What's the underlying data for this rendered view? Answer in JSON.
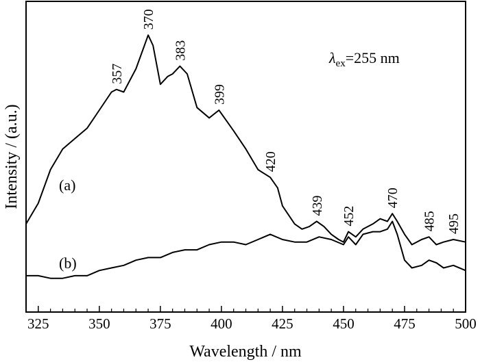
{
  "chart_data": {
    "type": "line",
    "title": "",
    "xlabel": "Wavelength / nm",
    "ylabel": "Intensity / (a.u.)",
    "xlim": [
      320,
      500
    ],
    "ylim": [
      0,
      1
    ],
    "x_ticks": [
      325,
      350,
      375,
      400,
      425,
      450,
      475,
      500
    ],
    "x_tick_labels": [
      "325",
      "350",
      "375",
      "400",
      "425",
      "450",
      "475",
      "500"
    ],
    "grid": false,
    "legend": "none",
    "annotation": {
      "symbol": "λ",
      "subscript": "ex",
      "text": "=255 nm"
    },
    "series": [
      {
        "id": "a",
        "label": "(a)",
        "x": [
          320,
          325,
          330,
          335,
          340,
          345,
          350,
          355,
          357,
          360,
          365,
          370,
          372,
          375,
          378,
          380,
          383,
          386,
          390,
          395,
          399,
          402,
          405,
          410,
          415,
          420,
          423,
          425,
          430,
          433,
          436,
          439,
          442,
          445,
          448,
          450,
          452,
          455,
          458,
          462,
          465,
          468,
          470,
          472,
          475,
          478,
          482,
          485,
          488,
          491,
          495,
          500
        ],
        "y": [
          0.24,
          0.32,
          0.45,
          0.53,
          0.57,
          0.61,
          0.68,
          0.75,
          0.76,
          0.75,
          0.84,
          0.97,
          0.93,
          0.78,
          0.81,
          0.82,
          0.85,
          0.82,
          0.69,
          0.65,
          0.68,
          0.64,
          0.6,
          0.53,
          0.45,
          0.42,
          0.38,
          0.31,
          0.24,
          0.22,
          0.23,
          0.25,
          0.23,
          0.2,
          0.18,
          0.17,
          0.21,
          0.19,
          0.22,
          0.24,
          0.26,
          0.25,
          0.28,
          0.25,
          0.2,
          0.16,
          0.18,
          0.19,
          0.16,
          0.17,
          0.18,
          0.17
        ]
      },
      {
        "id": "b",
        "label": "(b)",
        "x": [
          320,
          325,
          330,
          335,
          340,
          345,
          350,
          355,
          360,
          365,
          370,
          375,
          380,
          385,
          390,
          395,
          400,
          405,
          410,
          415,
          420,
          425,
          430,
          435,
          440,
          445,
          450,
          452,
          455,
          458,
          462,
          465,
          468,
          470,
          472,
          475,
          478,
          482,
          485,
          488,
          491,
          495,
          500
        ],
        "y": [
          0.04,
          0.04,
          0.03,
          0.03,
          0.04,
          0.04,
          0.06,
          0.07,
          0.08,
          0.1,
          0.11,
          0.11,
          0.13,
          0.14,
          0.14,
          0.16,
          0.17,
          0.17,
          0.16,
          0.18,
          0.2,
          0.18,
          0.17,
          0.17,
          0.19,
          0.18,
          0.16,
          0.19,
          0.16,
          0.2,
          0.21,
          0.21,
          0.22,
          0.25,
          0.2,
          0.1,
          0.07,
          0.08,
          0.1,
          0.09,
          0.07,
          0.08,
          0.06
        ]
      }
    ],
    "peak_annotations": [
      {
        "text": "357",
        "x": 357,
        "y": 0.76,
        "series": "a"
      },
      {
        "text": "370",
        "x": 370,
        "y": 0.97,
        "series": "a"
      },
      {
        "text": "383",
        "x": 383,
        "y": 0.85,
        "series": "a"
      },
      {
        "text": "399",
        "x": 399,
        "y": 0.68,
        "series": "a"
      },
      {
        "text": "420",
        "x": 420,
        "y": 0.42,
        "series": "a"
      },
      {
        "text": "439",
        "x": 439,
        "y": 0.25,
        "series": "a"
      },
      {
        "text": "452",
        "x": 452,
        "y": 0.21,
        "series": "a"
      },
      {
        "text": "470",
        "x": 470,
        "y": 0.28,
        "series": "a"
      },
      {
        "text": "485",
        "x": 485,
        "y": 0.19,
        "series": "a"
      },
      {
        "text": "495",
        "x": 495,
        "y": 0.18,
        "series": "a"
      }
    ]
  }
}
